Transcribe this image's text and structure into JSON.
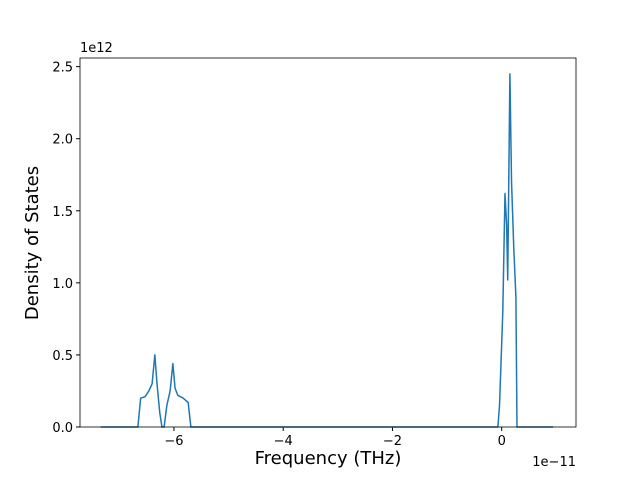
{
  "chart_data": {
    "type": "line",
    "xlabel": "Frequency (THz)",
    "ylabel": "Density of States",
    "x_offset_label": "1e−11",
    "y_offset_label": "1e12",
    "xlim": [
      -7.72,
      1.36
    ],
    "ylim": [
      0,
      2.56
    ],
    "xticks": [
      {
        "value": -6,
        "label": "−6"
      },
      {
        "value": -4,
        "label": "−4"
      },
      {
        "value": -2,
        "label": "−2"
      },
      0
    ],
    "yticks": [
      {
        "value": 0,
        "label": "0.0"
      },
      {
        "value": 0.5,
        "label": "0.5"
      },
      {
        "value": 1.0,
        "label": "1.0"
      },
      {
        "value": 1.5,
        "label": "1.5"
      },
      {
        "value": 2.0,
        "label": "2.0"
      },
      {
        "value": 2.5,
        "label": "2.5"
      }
    ],
    "color": "#1f77b4",
    "x": [
      -7.34,
      -6.66,
      -6.61,
      -6.53,
      -6.46,
      -6.4,
      -6.35,
      -6.31,
      -6.26,
      -6.22,
      -6.18,
      -6.13,
      -6.07,
      -6.02,
      -5.98,
      -5.93,
      -5.83,
      -5.74,
      -5.69,
      -0.07,
      -0.04,
      0.02,
      0.06,
      0.09,
      0.11,
      0.15,
      0.18,
      0.22,
      0.26,
      0.28,
      0.94
    ],
    "values": [
      0,
      0,
      0.2,
      0.21,
      0.25,
      0.3,
      0.5,
      0.3,
      0.1,
      0,
      0,
      0.15,
      0.25,
      0.44,
      0.27,
      0.22,
      0.2,
      0.17,
      0,
      0,
      0.15,
      0.8,
      1.62,
      1.4,
      1.02,
      2.45,
      1.7,
      1.25,
      0.9,
      0,
      0
    ]
  }
}
